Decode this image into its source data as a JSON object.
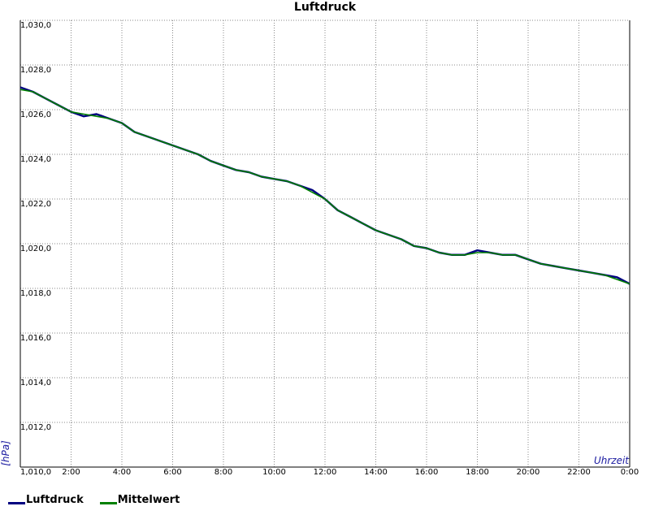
{
  "chart_data": {
    "type": "line",
    "title": "Luftdruck",
    "ylabel": "[hPa]",
    "xlabel": "Uhrzeit",
    "ylim": [
      1010.0,
      1030.0
    ],
    "xlim": [
      0,
      24
    ],
    "grid": true,
    "legend_position": "bottom-left",
    "y_ticks": [
      "1,010,0",
      "1,012,0",
      "1,014,0",
      "1,016,0",
      "1,018,0",
      "1,020,0",
      "1,022,0",
      "1,024,0",
      "1,026,0",
      "1,028,0",
      "1,030,0"
    ],
    "x_ticks": [
      "2:00",
      "4:00",
      "6:00",
      "8:00",
      "10:00",
      "12:00",
      "14:00",
      "16:00",
      "18:00",
      "20:00",
      "22:00",
      "0:00"
    ],
    "series": [
      {
        "name": "Luftdruck",
        "color": "#000080",
        "x": [
          0,
          0.5,
          1,
          1.5,
          2,
          2.5,
          3,
          3.5,
          4,
          4.5,
          5,
          5.5,
          6,
          6.5,
          7,
          7.5,
          8,
          8.5,
          9,
          9.5,
          10,
          10.5,
          11,
          11.5,
          12,
          12.5,
          13,
          13.5,
          14,
          14.5,
          15,
          15.5,
          16,
          16.5,
          17,
          17.5,
          18,
          18.5,
          19,
          19.5,
          20,
          20.5,
          21,
          21.5,
          22,
          22.5,
          23,
          23.5,
          24
        ],
        "values": [
          1027.0,
          1026.8,
          1026.5,
          1026.2,
          1025.9,
          1025.7,
          1025.8,
          1025.6,
          1025.4,
          1025.0,
          1024.8,
          1024.6,
          1024.4,
          1024.2,
          1024.0,
          1023.7,
          1023.5,
          1023.3,
          1023.2,
          1023.0,
          1022.9,
          1022.8,
          1022.6,
          1022.4,
          1022.0,
          1021.5,
          1021.2,
          1020.9,
          1020.6,
          1020.4,
          1020.2,
          1019.9,
          1019.8,
          1019.6,
          1019.5,
          1019.5,
          1019.7,
          1019.6,
          1019.5,
          1019.5,
          1019.3,
          1019.1,
          1019.0,
          1018.9,
          1018.8,
          1018.7,
          1018.6,
          1018.5,
          1018.2
        ]
      },
      {
        "name": "Mittelwert",
        "color": "#008000",
        "x": [
          0,
          0.5,
          1,
          1.5,
          2,
          2.5,
          3,
          3.5,
          4,
          4.5,
          5,
          5.5,
          6,
          6.5,
          7,
          7.5,
          8,
          8.5,
          9,
          9.5,
          10,
          10.5,
          11,
          11.5,
          12,
          12.5,
          13,
          13.5,
          14,
          14.5,
          15,
          15.5,
          16,
          16.5,
          17,
          17.5,
          18,
          18.5,
          19,
          19.5,
          20,
          20.5,
          21,
          21.5,
          22,
          22.5,
          23,
          23.5,
          24
        ],
        "values": [
          1026.9,
          1026.8,
          1026.5,
          1026.2,
          1025.9,
          1025.8,
          1025.7,
          1025.6,
          1025.4,
          1025.0,
          1024.8,
          1024.6,
          1024.4,
          1024.2,
          1024.0,
          1023.7,
          1023.5,
          1023.3,
          1023.2,
          1023.0,
          1022.9,
          1022.8,
          1022.6,
          1022.3,
          1022.0,
          1021.5,
          1021.2,
          1020.9,
          1020.6,
          1020.4,
          1020.2,
          1019.9,
          1019.8,
          1019.6,
          1019.5,
          1019.5,
          1019.6,
          1019.6,
          1019.5,
          1019.5,
          1019.3,
          1019.1,
          1019.0,
          1018.9,
          1018.8,
          1018.7,
          1018.6,
          1018.4,
          1018.2
        ]
      }
    ]
  }
}
